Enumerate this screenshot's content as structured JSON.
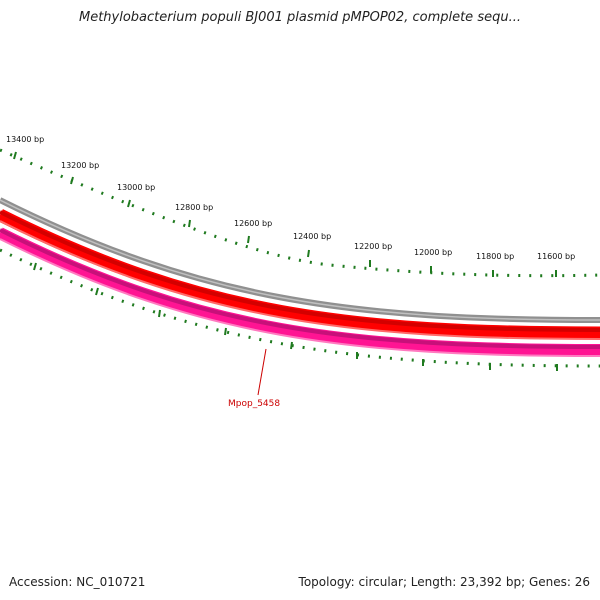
{
  "title": "Methylobacterium populi BJ001 plasmid pMPOP02, complete sequ...",
  "ruler": {
    "labels": [
      "13400 bp",
      "13200 bp",
      "13000 bp",
      "12800 bp",
      "12600 bp",
      "12400 bp",
      "12200 bp",
      "12000 bp",
      "11800 bp",
      "11600 bp"
    ],
    "tick_color": "#1f7a1f"
  },
  "tracks": {
    "backbone_color": "#808080",
    "forward_gene_color": "#ff0000",
    "reverse_gene_color": "#ff1493"
  },
  "gene_label": {
    "text": "Mpop_5458",
    "color": "#cc0000"
  },
  "footer": {
    "accession": "Accession: NC_010721",
    "summary": "Topology: circular; Length: 23,392 bp; Genes: 26"
  }
}
